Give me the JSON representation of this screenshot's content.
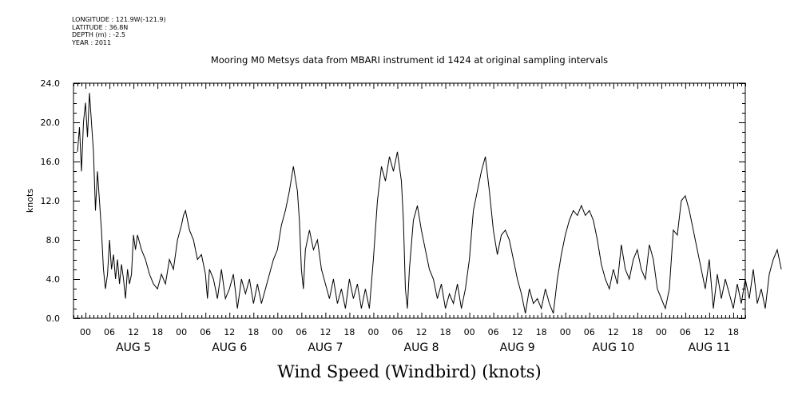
{
  "header": {
    "longitude": "LONGITUDE : 121.9W(-121.9)",
    "latitude": "LATITUDE : 36.8N",
    "depth": "DEPTH (m) : -2.5",
    "year": "YEAR : 2011"
  },
  "chart_data": {
    "type": "line",
    "title": "Mooring M0 Metsys data from MBARI instrument id 1424 at original sampling intervals",
    "xlabel": "Wind Speed (Windbird) (knots)",
    "ylabel": "knots",
    "ylim": [
      0,
      24
    ],
    "yticks": [
      "0.0",
      "4.0",
      "8.0",
      "12.0",
      "16.0",
      "20.0",
      "24.0"
    ],
    "xlim_hours": [
      -3,
      165
    ],
    "xtick_hours": [
      "00",
      "06",
      "12",
      "18"
    ],
    "day_labels": [
      "AUG 5",
      "AUG 6",
      "AUG 7",
      "AUG 8",
      "AUG 9",
      "AUG 10",
      "AUG 11"
    ],
    "grid": false,
    "series": [
      {
        "x_unit": "hours since AUG 5 00",
        "points": [
          [
            -2,
            17
          ],
          [
            -1.5,
            19.5
          ],
          [
            -1,
            15
          ],
          [
            -0.5,
            20
          ],
          [
            0,
            22
          ],
          [
            0.5,
            18.5
          ],
          [
            1,
            23
          ],
          [
            1.5,
            20
          ],
          [
            2,
            17
          ],
          [
            2.5,
            11
          ],
          [
            3,
            15
          ],
          [
            3.5,
            12
          ],
          [
            4,
            9
          ],
          [
            4.5,
            5
          ],
          [
            5,
            3
          ],
          [
            5.5,
            4.5
          ],
          [
            6,
            8
          ],
          [
            6.5,
            5
          ],
          [
            7,
            6.5
          ],
          [
            7.5,
            4
          ],
          [
            8,
            6
          ],
          [
            8.5,
            3.5
          ],
          [
            9,
            5.5
          ],
          [
            9.5,
            4
          ],
          [
            10,
            2
          ],
          [
            10.5,
            5
          ],
          [
            11,
            3.5
          ],
          [
            11.5,
            4.5
          ],
          [
            12,
            8.5
          ],
          [
            12.5,
            7
          ],
          [
            13,
            8.5
          ],
          [
            14,
            7
          ],
          [
            15,
            6
          ],
          [
            16,
            4.5
          ],
          [
            17,
            3.5
          ],
          [
            18,
            3
          ],
          [
            19,
            4.5
          ],
          [
            20,
            3.5
          ],
          [
            21,
            6
          ],
          [
            22,
            5
          ],
          [
            23,
            8
          ],
          [
            24,
            9.5
          ],
          [
            24.5,
            10.5
          ],
          [
            25,
            11
          ],
          [
            26,
            9
          ],
          [
            27,
            8
          ],
          [
            28,
            6
          ],
          [
            29,
            6.5
          ],
          [
            30,
            4.5
          ],
          [
            30.5,
            2
          ],
          [
            31,
            5
          ],
          [
            32,
            4
          ],
          [
            33,
            2
          ],
          [
            34,
            5
          ],
          [
            35,
            2
          ],
          [
            36,
            3
          ],
          [
            37,
            4.5
          ],
          [
            38,
            1
          ],
          [
            39,
            4
          ],
          [
            40,
            2.5
          ],
          [
            41,
            4
          ],
          [
            42,
            1.5
          ],
          [
            43,
            3.5
          ],
          [
            44,
            1.5
          ],
          [
            45,
            3
          ],
          [
            46,
            4.5
          ],
          [
            47,
            6
          ],
          [
            48,
            7
          ],
          [
            49,
            9.5
          ],
          [
            50,
            11
          ],
          [
            51,
            13
          ],
          [
            52,
            15.5
          ],
          [
            53,
            13
          ],
          [
            53.5,
            10
          ],
          [
            54,
            5
          ],
          [
            54.5,
            3
          ],
          [
            55,
            7
          ],
          [
            56,
            9
          ],
          [
            57,
            7
          ],
          [
            58,
            8
          ],
          [
            59,
            5
          ],
          [
            60,
            3.5
          ],
          [
            61,
            2
          ],
          [
            62,
            4
          ],
          [
            63,
            1.5
          ],
          [
            64,
            3
          ],
          [
            65,
            1
          ],
          [
            66,
            4
          ],
          [
            67,
            2
          ],
          [
            68,
            3.5
          ],
          [
            69,
            1
          ],
          [
            70,
            3
          ],
          [
            71,
            1
          ],
          [
            72,
            6
          ],
          [
            73,
            12
          ],
          [
            74,
            15.5
          ],
          [
            75,
            14
          ],
          [
            76,
            16.5
          ],
          [
            77,
            15
          ],
          [
            78,
            17
          ],
          [
            79,
            14
          ],
          [
            79.5,
            10
          ],
          [
            80,
            3
          ],
          [
            80.5,
            1
          ],
          [
            81,
            5
          ],
          [
            82,
            10
          ],
          [
            83,
            11.5
          ],
          [
            84,
            9
          ],
          [
            85,
            7
          ],
          [
            86,
            5
          ],
          [
            87,
            4
          ],
          [
            88,
            2
          ],
          [
            89,
            3.5
          ],
          [
            90,
            1
          ],
          [
            91,
            2.5
          ],
          [
            92,
            1.5
          ],
          [
            93,
            3.5
          ],
          [
            94,
            1
          ],
          [
            95,
            3
          ],
          [
            96,
            6
          ],
          [
            97,
            11
          ],
          [
            98,
            13
          ],
          [
            99,
            15
          ],
          [
            100,
            16.5
          ],
          [
            101,
            13
          ],
          [
            102,
            9
          ],
          [
            103,
            6.5
          ],
          [
            104,
            8.5
          ],
          [
            105,
            9
          ],
          [
            106,
            8
          ],
          [
            107,
            6
          ],
          [
            108,
            4
          ],
          [
            109,
            2.5
          ],
          [
            110,
            0.5
          ],
          [
            111,
            3
          ],
          [
            112,
            1.5
          ],
          [
            113,
            2
          ],
          [
            114,
            1
          ],
          [
            115,
            3
          ],
          [
            116,
            1.5
          ],
          [
            117,
            0.5
          ],
          [
            118,
            4
          ],
          [
            119,
            6.5
          ],
          [
            120,
            8.5
          ],
          [
            121,
            10
          ],
          [
            122,
            11
          ],
          [
            123,
            10.5
          ],
          [
            124,
            11.5
          ],
          [
            125,
            10.5
          ],
          [
            126,
            11
          ],
          [
            127,
            10
          ],
          [
            128,
            8
          ],
          [
            129,
            5.5
          ],
          [
            130,
            4
          ],
          [
            131,
            3
          ],
          [
            132,
            5
          ],
          [
            133,
            3.5
          ],
          [
            134,
            7.5
          ],
          [
            135,
            5
          ],
          [
            136,
            4
          ],
          [
            137,
            6
          ],
          [
            138,
            7
          ],
          [
            139,
            5
          ],
          [
            140,
            4
          ],
          [
            141,
            7.5
          ],
          [
            142,
            6
          ],
          [
            143,
            3
          ],
          [
            144,
            2
          ],
          [
            145,
            1
          ],
          [
            146,
            3
          ],
          [
            147,
            9
          ],
          [
            148,
            8.5
          ],
          [
            149,
            12
          ],
          [
            150,
            12.5
          ],
          [
            151,
            11
          ],
          [
            152,
            9
          ],
          [
            153,
            7
          ],
          [
            154,
            5
          ],
          [
            155,
            3
          ],
          [
            156,
            6
          ],
          [
            157,
            1
          ],
          [
            158,
            4.5
          ],
          [
            159,
            2
          ],
          [
            160,
            4
          ],
          [
            161,
            2.5
          ],
          [
            162,
            1
          ],
          [
            163,
            3.5
          ],
          [
            164,
            1.5
          ],
          [
            165,
            4
          ],
          [
            166,
            2
          ],
          [
            167,
            5
          ],
          [
            168,
            1.5
          ],
          [
            169,
            3
          ],
          [
            170,
            1
          ],
          [
            171,
            4.5
          ],
          [
            172,
            6
          ],
          [
            173,
            7
          ],
          [
            174,
            5
          ]
        ]
      }
    ]
  }
}
